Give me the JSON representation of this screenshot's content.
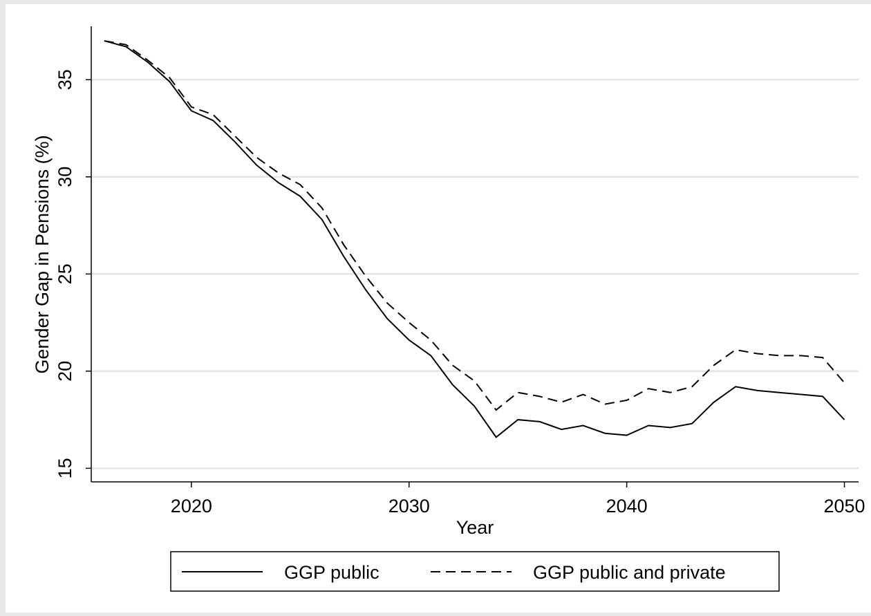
{
  "chart_data": {
    "type": "line",
    "x_label": "Year",
    "y_label": "Gender Gap in Pensions (%)",
    "x": [
      2016,
      2017,
      2018,
      2019,
      2020,
      2021,
      2022,
      2023,
      2024,
      2025,
      2026,
      2027,
      2028,
      2029,
      2030,
      2031,
      2032,
      2033,
      2034,
      2035,
      2036,
      2037,
      2038,
      2039,
      2040,
      2041,
      2042,
      2043,
      2044,
      2045,
      2046,
      2047,
      2048,
      2049,
      2050
    ],
    "series": [
      {
        "name": "GGP public",
        "color": "#000000",
        "dash": "solid",
        "values": [
          37.0,
          36.7,
          35.9,
          34.9,
          33.4,
          32.9,
          31.8,
          30.6,
          29.7,
          29.0,
          27.8,
          25.9,
          24.2,
          22.7,
          21.6,
          20.8,
          19.3,
          18.2,
          16.6,
          17.5,
          17.4,
          17.0,
          17.2,
          16.8,
          16.7,
          17.2,
          17.1,
          17.3,
          18.4,
          19.2,
          19.0,
          18.9,
          18.8,
          18.7,
          17.5
        ]
      },
      {
        "name": "GGP public and private",
        "color": "#000000",
        "dash": "dashed",
        "values": [
          37.0,
          36.8,
          36.0,
          35.1,
          33.6,
          33.2,
          32.1,
          31.0,
          30.2,
          29.6,
          28.4,
          26.5,
          24.9,
          23.5,
          22.5,
          21.6,
          20.3,
          19.5,
          18.0,
          18.9,
          18.7,
          18.4,
          18.8,
          18.3,
          18.5,
          19.1,
          18.9,
          19.2,
          20.3,
          21.1,
          20.9,
          20.8,
          20.8,
          20.7,
          19.4
        ]
      }
    ],
    "xlim": [
      2015.4,
      2050.65
    ],
    "xticks": [
      2020,
      2030,
      2040,
      2050
    ],
    "ylim": [
      14.3,
      37.75
    ],
    "yticks": [
      15,
      20,
      25,
      30,
      35
    ],
    "grid": true,
    "legend": "bottom"
  }
}
